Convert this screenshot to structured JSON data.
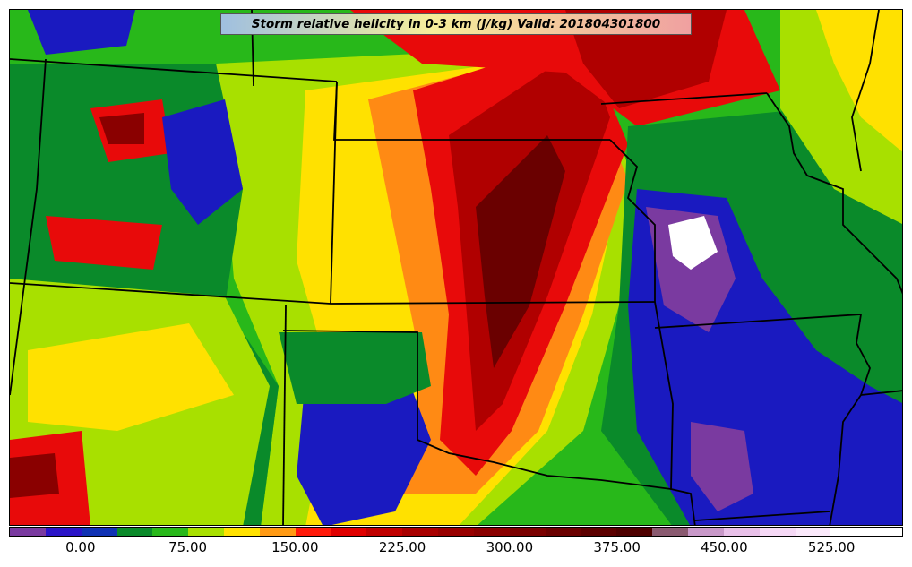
{
  "title": "Storm relative helicity in 0-3 km (J/kg) Valid: 201804301800",
  "colorbar": {
    "colors": [
      "#7a3aa0",
      "#2a14c8",
      "#1032b4",
      "#0a8a2a",
      "#28b81a",
      "#a8e000",
      "#ffe100",
      "#ff9a14",
      "#ff1a0a",
      "#e00000",
      "#c00000",
      "#a80000",
      "#980000",
      "#8a0000",
      "#7a0000",
      "#6a0000",
      "#5c0000",
      "#4e0000",
      "#8a5a70",
      "#c898c8",
      "#e8c0e8",
      "#f5d8f5",
      "#fae8fa",
      "#ffffff",
      "#ffffff"
    ],
    "tick_labels": [
      "0.00",
      "75.00",
      "150.00",
      "225.00",
      "300.00",
      "375.00",
      "450.00",
      "525.00"
    ],
    "tick_values": [
      0,
      75,
      150,
      225,
      300,
      375,
      450,
      525
    ],
    "vmin": -50,
    "vmax": 575
  },
  "palette": {
    "purple": "#7a3aa0",
    "blue": "#1a1ac0",
    "green_dark": "#0a8a2a",
    "green": "#28b81a",
    "lime": "#a8e000",
    "yellow": "#ffe100",
    "orange": "#ff8a14",
    "red": "#e80a0a",
    "red_dark": "#b00000",
    "maroon": "#6a0000"
  }
}
